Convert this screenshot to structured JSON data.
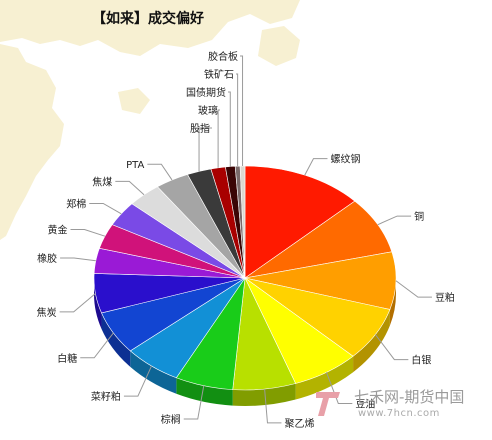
{
  "colors": {
    "map_land": "#f7f0d2",
    "leader_line": "#9a9a9a",
    "label_text": "#222222",
    "watermark_logo": "#e8a0a8"
  },
  "watermark": {
    "brand": "七禾网-期货中国",
    "url": "www.7hcn.com"
  },
  "chart_data": {
    "type": "pie",
    "title": "【如来】成交偏好",
    "style": "3d",
    "legend": "none",
    "slices": [
      {
        "label": "螺纹钢",
        "value": 12.5,
        "color": "#ff1a00"
      },
      {
        "label": "铜",
        "value": 8.0,
        "color": "#ff6a00"
      },
      {
        "label": "豆粕",
        "value": 8.0,
        "color": "#ff9e00"
      },
      {
        "label": "白银",
        "value": 7.5,
        "color": "#ffd200"
      },
      {
        "label": "豆油",
        "value": 7.0,
        "color": "#ffff00"
      },
      {
        "label": "聚乙烯",
        "value": 6.5,
        "color": "#b8e000"
      },
      {
        "label": "棕榈",
        "value": 6.0,
        "color": "#19cc19"
      },
      {
        "label": "菜籽粕",
        "value": 6.0,
        "color": "#1290d6"
      },
      {
        "label": "白糖",
        "value": 6.0,
        "color": "#1245d2"
      },
      {
        "label": "焦炭",
        "value": 5.5,
        "color": "#2a0fcc"
      },
      {
        "label": "橡胶",
        "value": 3.5,
        "color": "#9a1ad6"
      },
      {
        "label": "黄金",
        "value": 3.5,
        "color": "#d0127a"
      },
      {
        "label": "郑棉",
        "value": 3.5,
        "color": "#7a4ae6"
      },
      {
        "label": "焦煤",
        "value": 3.5,
        "color": "#dcdcdc"
      },
      {
        "label": "PTA",
        "value": 3.5,
        "color": "#a5a5a5"
      },
      {
        "label": "股指",
        "value": 2.5,
        "color": "#3a3a3a"
      },
      {
        "label": "玻璃",
        "value": 1.5,
        "color": "#a80000"
      },
      {
        "label": "国债期货",
        "value": 1.0,
        "color": "#3a0505"
      },
      {
        "label": "铁矿石",
        "value": 0.5,
        "color": "#7a6a6a"
      },
      {
        "label": "胶合板",
        "value": 0.5,
        "color": "#dcd8d0"
      }
    ]
  }
}
